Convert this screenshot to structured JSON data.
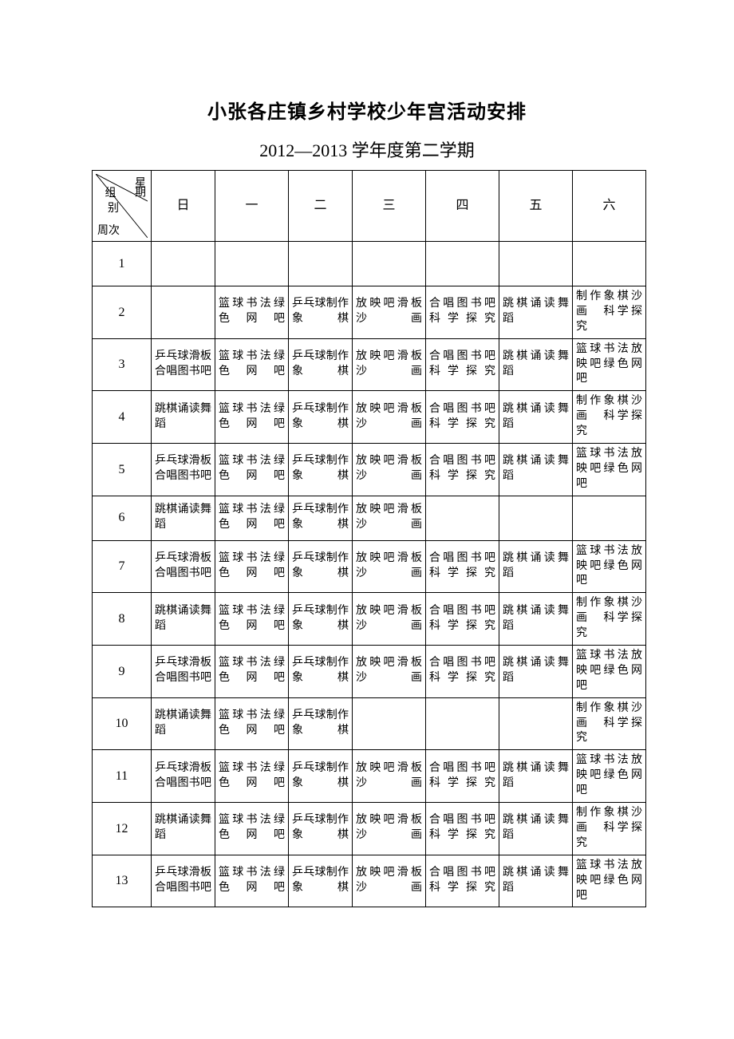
{
  "title": "小张各庄镇乡村学校少年宫活动安排",
  "subtitle": "2012—2013 学年度第二学期",
  "corner": {
    "top": "星期",
    "mid": "组别",
    "bottom": "周次"
  },
  "day_headers": [
    "日",
    "一",
    "二",
    "三",
    "四",
    "五",
    "六"
  ],
  "activities": {
    "A": "乒乓球滑板合唱图书吧",
    "B": "跳棋诵读舞蹈",
    "C": "篮球书法绿色网吧",
    "D": "乒乓球制作象棋",
    "E": "放映吧滑板沙画",
    "F": "合唱图书吧科学探究",
    "G": "跳棋诵读舞蹈",
    "H": "制作象棋沙画　科学探究",
    "I": "篮球书法放映吧绿色网吧"
  },
  "rows": [
    {
      "week": "1",
      "cells": [
        "",
        "",
        "",
        "",
        "",
        "",
        ""
      ]
    },
    {
      "week": "2",
      "cells": [
        "",
        "C",
        "D",
        "E",
        "F",
        "G",
        "H"
      ]
    },
    {
      "week": "3",
      "cells": [
        "A",
        "C",
        "D",
        "E",
        "F",
        "G",
        "I"
      ]
    },
    {
      "week": "4",
      "cells": [
        "B",
        "C",
        "D",
        "E",
        "F",
        "G",
        "H"
      ]
    },
    {
      "week": "5",
      "cells": [
        "A",
        "C",
        "D",
        "E",
        "F",
        "G",
        "I"
      ]
    },
    {
      "week": "6",
      "cells": [
        "B",
        "C",
        "D",
        "E",
        "",
        "",
        ""
      ]
    },
    {
      "week": "7",
      "cells": [
        "A",
        "C",
        "D",
        "E",
        "F",
        "G",
        "I"
      ]
    },
    {
      "week": "8",
      "cells": [
        "B",
        "C",
        "D",
        "E",
        "F",
        "G",
        "H"
      ]
    },
    {
      "week": "9",
      "cells": [
        "A",
        "C",
        "D",
        "E",
        "F",
        "G",
        "I"
      ]
    },
    {
      "week": "10",
      "cells": [
        "B",
        "C",
        "D",
        "",
        "",
        "",
        "H"
      ]
    },
    {
      "week": "11",
      "cells": [
        "A",
        "C",
        "D",
        "E",
        "F",
        "G",
        "I"
      ]
    },
    {
      "week": "12",
      "cells": [
        "B",
        "C",
        "D",
        "E",
        "F",
        "G",
        "H"
      ]
    },
    {
      "week": "13",
      "cells": [
        "A",
        "C",
        "D",
        "E",
        "F",
        "G",
        "I"
      ]
    }
  ],
  "style": {
    "background_color": "#ffffff",
    "border_color": "#000000",
    "title_fontsize": 24,
    "subtitle_fontsize": 22,
    "header_fontsize": 16,
    "cell_fontsize": 14,
    "row_min_height": 56
  }
}
